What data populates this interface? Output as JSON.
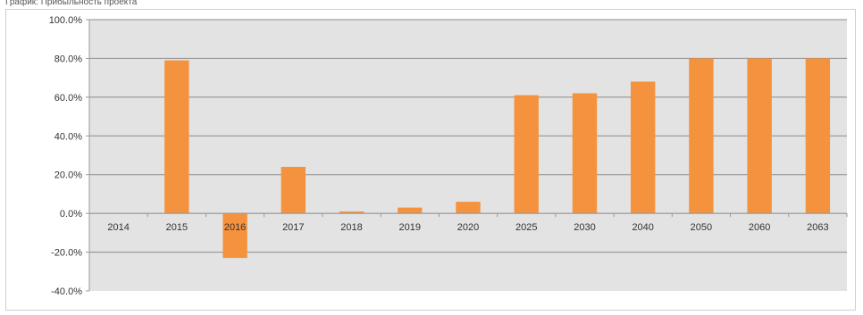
{
  "chart_data": {
    "type": "bar",
    "title": "График: Прибыльность проекта",
    "xlabel": "",
    "ylabel": "",
    "categories": [
      "2014",
      "2015",
      "2016",
      "2017",
      "2018",
      "2019",
      "2020",
      "2025",
      "2030",
      "2040",
      "2050",
      "2060",
      "2063"
    ],
    "series": [
      {
        "values": [
          0,
          79,
          -23,
          24,
          1,
          3,
          6,
          61,
          62,
          68,
          80,
          80,
          80
        ]
      }
    ],
    "ylim": [
      -40,
      100
    ],
    "yticks": [
      "100.0%",
      "80.0%",
      "60.0%",
      "40.0%",
      "20.0%",
      "0.0%",
      "-20.0%",
      "-40.0%"
    ],
    "ytick_values": [
      100,
      80,
      60,
      40,
      20,
      0,
      -20,
      -40
    ],
    "grid": true,
    "legend": "none",
    "colors": {
      "bar": "#f5923e",
      "plot_bg": "#e3e3e3",
      "grid": "#8c8c8c",
      "axis": "#9a9a9a"
    }
  }
}
